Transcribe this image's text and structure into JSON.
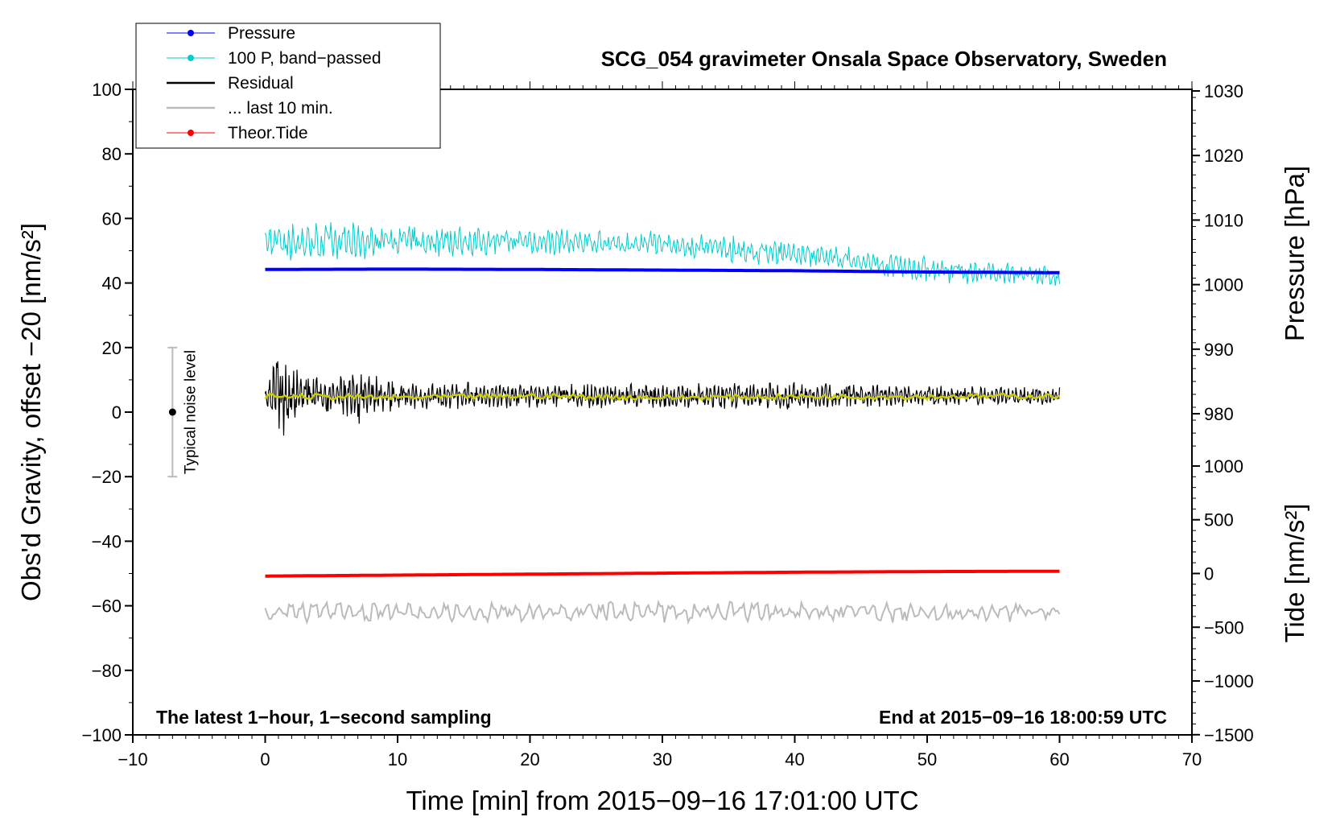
{
  "chart_data": {
    "type": "line",
    "title": "SCG_054 gravimeter Onsala Space Observatory, Sweden",
    "xlabel": "Time [min] from 2015−09−16 17:01:00 UTC",
    "ylabel_left": "Obs'd Gravity, offset −20 [nm/s²]",
    "ylabel_right_top": "Pressure [hPa]",
    "ylabel_right_bottom": "Tide [nm/s²]",
    "xlim": [
      -10,
      70
    ],
    "ylim": [
      -100,
      100
    ],
    "x_ticks": [
      -10,
      0,
      10,
      20,
      30,
      40,
      50,
      60,
      70
    ],
    "x_tick_labels": [
      "−10",
      "0",
      "10",
      "20",
      "30",
      "40",
      "50",
      "60",
      "70"
    ],
    "y_ticks": [
      100,
      80,
      60,
      40,
      20,
      0,
      -20,
      -40,
      -60,
      -80,
      -100
    ],
    "y_tick_labels": [
      "100",
      "80",
      "60",
      "40",
      "20",
      "0",
      "−20",
      "−40",
      "−60",
      "−80",
      "−100"
    ],
    "pressure_axis": {
      "ticks": [
        1030,
        1020,
        1010,
        1000,
        990,
        980
      ],
      "tick_labels": [
        "1030",
        "1020",
        "1010",
        "1000",
        "990",
        "980"
      ],
      "ref_value": 1000,
      "ref_gravity": 39.5,
      "scale_per_unit": 2.0
    },
    "tide_axis": {
      "ticks": [
        1000,
        500,
        0,
        -500,
        -1000,
        -1500
      ],
      "tick_labels": [
        "1000",
        "500",
        "0",
        "−500",
        "−1000",
        "−1500"
      ],
      "ref_value": 0,
      "ref_gravity": -50,
      "scale_per_unit": 0.0333
    },
    "legend": [
      {
        "label": "Pressure",
        "color": "#0000ff",
        "style": "line-dot"
      },
      {
        "label": "100 P, band−passed",
        "color": "#00cccc",
        "style": "line-dot"
      },
      {
        "label": "Residual",
        "color": "#000000",
        "style": "line"
      },
      {
        "label": "... last 10 min.",
        "color": "#bbbbbb",
        "style": "line"
      },
      {
        "label": "Theor.Tide",
        "color": "#ff0000",
        "style": "line-dot"
      }
    ],
    "series": [
      {
        "name": "Pressure",
        "color": "#0000ff",
        "x": [
          0,
          10,
          20,
          30,
          40,
          50,
          60
        ],
        "y": [
          44.2,
          44.3,
          44.2,
          44.0,
          43.8,
          43.4,
          43.2
        ]
      },
      {
        "name": "100 P, band−passed",
        "color": "#00cccc",
        "x": [
          0,
          10,
          20,
          30,
          40,
          50,
          60
        ],
        "y_mean": [
          53,
          53,
          53,
          52,
          49,
          44,
          42
        ],
        "y_amp": [
          6,
          5,
          4,
          4,
          4,
          4,
          3
        ]
      },
      {
        "name": "Residual",
        "color": "#000000",
        "x": [
          0,
          1,
          2,
          5,
          7,
          10,
          20,
          30,
          40,
          50,
          60
        ],
        "y_mean": [
          5,
          5,
          5,
          5,
          5,
          5,
          5,
          5,
          5,
          5,
          5
        ],
        "y_amp": [
          4,
          14,
          8,
          5,
          8,
          4,
          4,
          3.5,
          4,
          3,
          2.5
        ]
      },
      {
        "name": "Residual smoothed",
        "color": "#cccc00",
        "x": [
          0,
          10,
          20,
          30,
          40,
          50,
          60
        ],
        "y": [
          5,
          4.5,
          5,
          4.5,
          4.8,
          4.8,
          5
        ]
      },
      {
        "name": "... last 10 min.",
        "color": "#bbbbbb",
        "x": [
          0,
          60
        ],
        "y_mean": [
          -62,
          -62
        ],
        "y_amp": [
          3,
          3
        ]
      },
      {
        "name": "Theor.Tide",
        "color": "#ff0000",
        "x": [
          0,
          10,
          20,
          30,
          40,
          50,
          60
        ],
        "y": [
          -50.8,
          -50.5,
          -50.2,
          -49.9,
          -49.6,
          -49.4,
          -49.3
        ]
      }
    ],
    "noise_bar": {
      "x": -7,
      "center": 0,
      "low": -20,
      "high": 20,
      "label": "Typical noise level"
    },
    "annotations": {
      "bottom_left": "The latest 1−hour, 1−second sampling",
      "bottom_right": "End at 2015−09−16 18:00:59 UTC"
    }
  }
}
